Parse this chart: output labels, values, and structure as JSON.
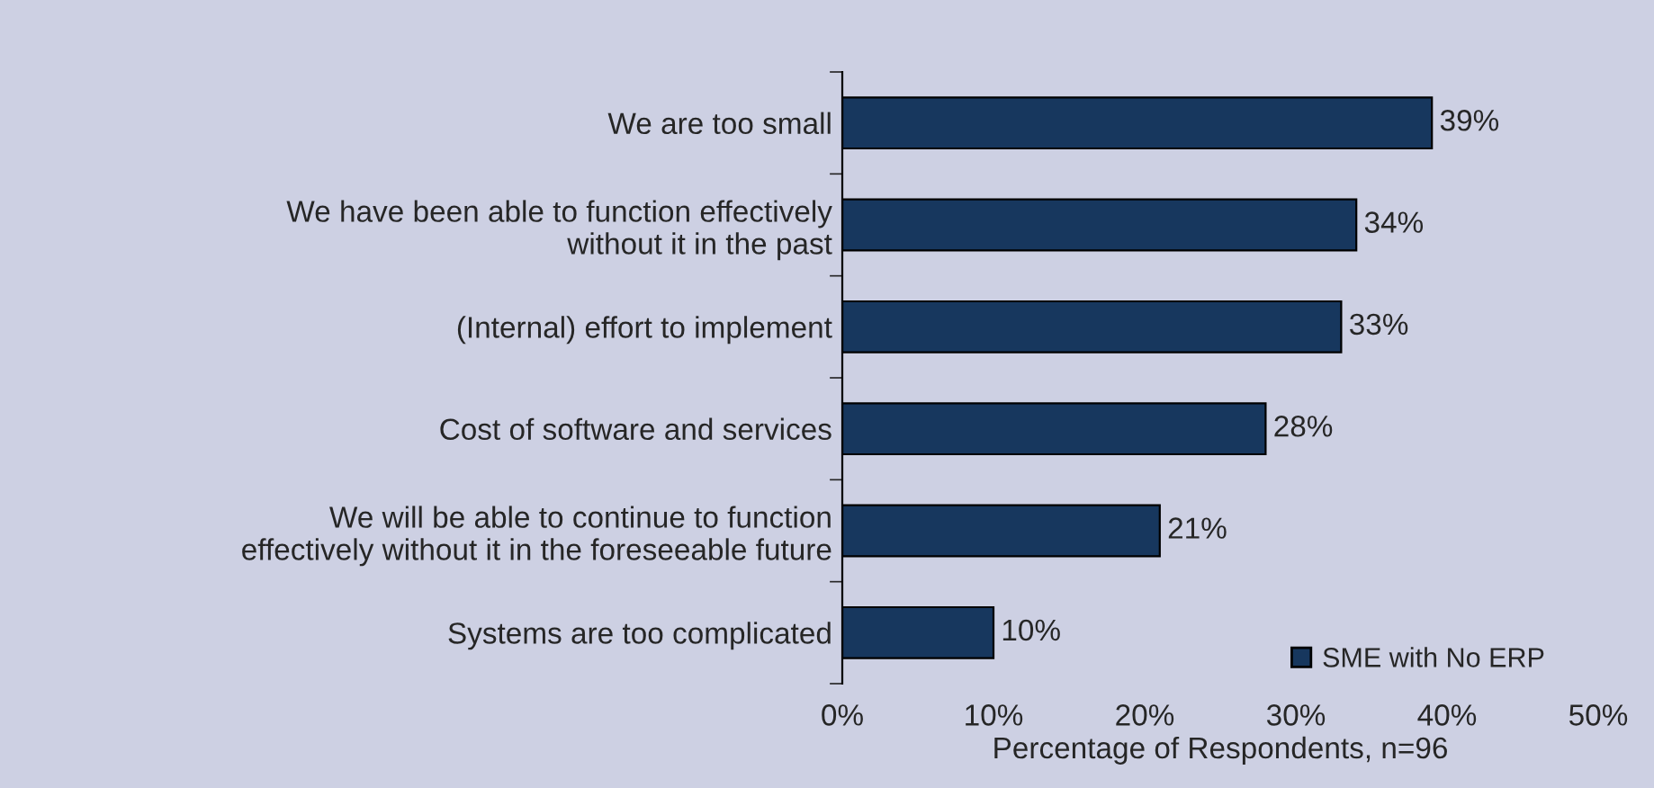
{
  "chart_data": {
    "type": "bar",
    "orientation": "horizontal",
    "xlabel": "Percentage of Respondents, n=96",
    "categories": [
      "We are too small",
      "We have been able to function effectively\nwithout it in the past",
      "(Internal) effort to implement",
      "Cost of software and services",
      "We will be able to continue to function\neffectively without it in the foreseeable future",
      "Systems are too complicated"
    ],
    "series": [
      {
        "name": "SME with No ERP",
        "color": "#17375e",
        "values": [
          39,
          34,
          33,
          28,
          21,
          10
        ],
        "value_labels": [
          "39%",
          "34%",
          "33%",
          "28%",
          "21%",
          "10%"
        ]
      }
    ],
    "xlim": [
      0,
      50
    ],
    "xticks": [
      {
        "value": 0,
        "label": "0%"
      },
      {
        "value": 10,
        "label": "10%"
      },
      {
        "value": 20,
        "label": "20%"
      },
      {
        "value": 30,
        "label": "30%"
      },
      {
        "value": 40,
        "label": "40%"
      },
      {
        "value": 50,
        "label": "50%"
      }
    ],
    "grid": false,
    "legend": "bottom right"
  }
}
